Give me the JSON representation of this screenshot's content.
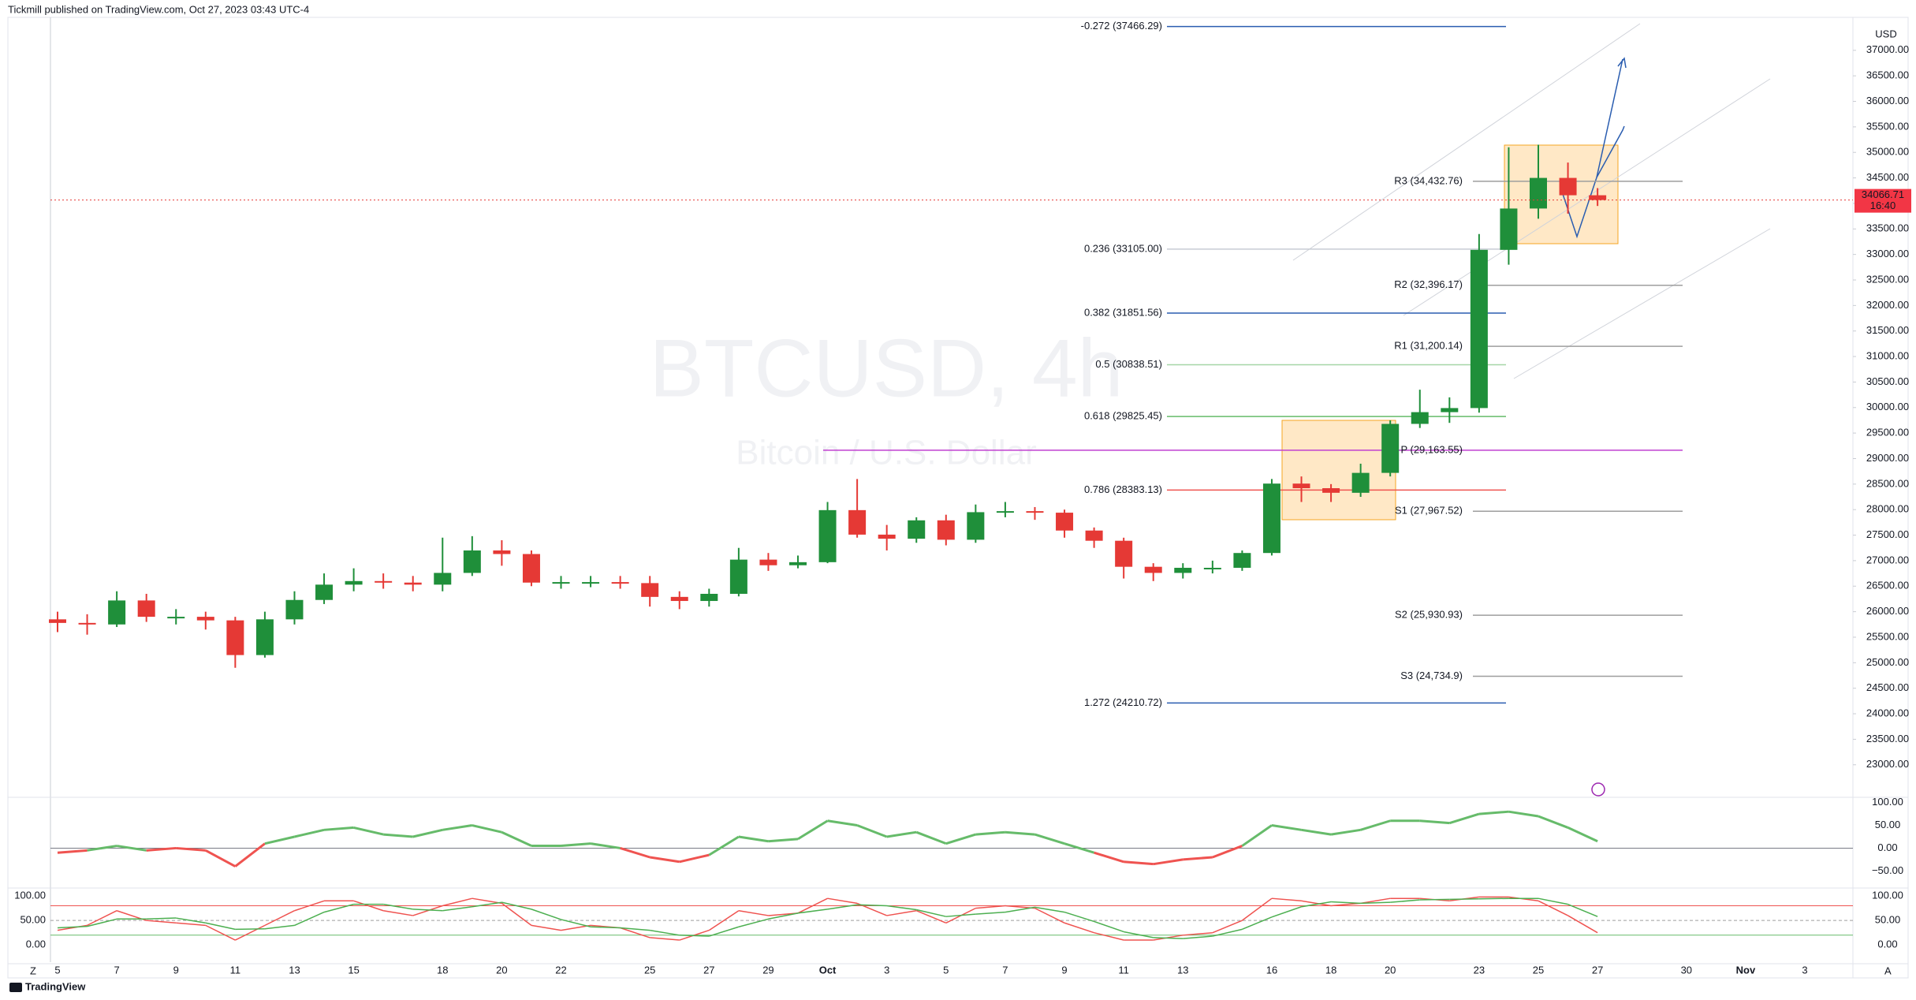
{
  "header": "Tickmill published on TradingView.com, Oct 27, 2023 03:43 UTC-4",
  "footer": "TradingView",
  "chart_data": {
    "type": "candlestick",
    "watermark": {
      "title": "BTCUSD, 4h",
      "subtitle": "Bitcoin / U.S. Dollar"
    },
    "currency": "USD",
    "x_labels": [
      "5",
      "7",
      "9",
      "11",
      "13",
      "15",
      "18",
      "20",
      "22",
      "25",
      "27",
      "29",
      "Oct",
      "3",
      "5",
      "7",
      "9",
      "11",
      "13",
      "16",
      "18",
      "20",
      "23",
      "25",
      "27",
      "30",
      "Nov",
      "3"
    ],
    "corner_labels": [
      "Z",
      "A"
    ],
    "colors": {
      "up": "#1f8f3a",
      "down": "#e53935"
    },
    "open": [
      25850,
      25780,
      25750,
      26220,
      25900,
      25900,
      25830,
      25150,
      25850,
      26230,
      26530,
      26600,
      26570,
      26530,
      26760,
      27200,
      27130,
      26570,
      26580,
      26580,
      26560,
      26290,
      26210,
      26350,
      27020,
      26910,
      26970,
      27990,
      27510,
      27430,
      27790,
      27410,
      27950,
      27970,
      27940,
      27590,
      27390,
      26880,
      26760,
      26860,
      26860,
      27150,
      28510,
      28420,
      28330,
      28720,
      29680,
      29910,
      29990,
      33090,
      33900,
      34500,
      34160
    ],
    "high": [
      26000,
      25950,
      26400,
      26350,
      26050,
      26000,
      25900,
      26000,
      26400,
      26750,
      26850,
      26750,
      26700,
      27450,
      27480,
      27400,
      27200,
      26700,
      26700,
      26700,
      26700,
      26400,
      26450,
      27250,
      27150,
      27100,
      28150,
      28600,
      27700,
      27850,
      27900,
      28100,
      28150,
      28050,
      28000,
      27650,
      27450,
      26950,
      26950,
      27000,
      27200,
      28600,
      28650,
      28500,
      28900,
      29750,
      30350,
      30200,
      33400,
      35100,
      35150,
      34800,
      34300
    ],
    "low": [
      25600,
      25550,
      25700,
      25800,
      25750,
      25650,
      24900,
      25100,
      25750,
      26150,
      26400,
      26450,
      26400,
      26400,
      26700,
      26900,
      26500,
      26450,
      26480,
      26450,
      26100,
      26050,
      26100,
      26300,
      26800,
      26850,
      26950,
      27450,
      27200,
      27350,
      27300,
      27350,
      27850,
      27800,
      27450,
      27250,
      26650,
      26600,
      26650,
      26750,
      26800,
      27100,
      28150,
      28150,
      28250,
      28650,
      29600,
      29700,
      29900,
      32800,
      33700,
      33800,
      33950
    ],
    "close": [
      25780,
      25750,
      26220,
      25900,
      25900,
      25830,
      25150,
      25850,
      26230,
      26530,
      26600,
      26570,
      26530,
      26760,
      27200,
      27130,
      26570,
      26580,
      26580,
      26560,
      26290,
      26210,
      26350,
      27020,
      26910,
      26970,
      27990,
      27510,
      27430,
      27790,
      27410,
      27950,
      27970,
      27940,
      27590,
      27390,
      26880,
      26760,
      26860,
      26860,
      27150,
      28510,
      28420,
      28330,
      28720,
      29680,
      29910,
      29990,
      33090,
      33900,
      34500,
      34160,
      34066.71
    ],
    "last": {
      "value": 34066.71,
      "countdown": "16:40"
    },
    "ylim": [
      22378,
      37646
    ],
    "yticks": [
      {
        "value": 23000,
        "label": "23000.00"
      },
      {
        "value": 23500,
        "label": "23500.00"
      },
      {
        "value": 24000,
        "label": "24000.00"
      },
      {
        "value": 24500,
        "label": "24500.00"
      },
      {
        "value": 25000,
        "label": "25000.00"
      },
      {
        "value": 25500,
        "label": "25500.00"
      },
      {
        "value": 26000,
        "label": "26000.00"
      },
      {
        "value": 26500,
        "label": "26500.00"
      },
      {
        "value": 27000,
        "label": "27000.00"
      },
      {
        "value": 27500,
        "label": "27500.00"
      },
      {
        "value": 28000,
        "label": "28000.00"
      },
      {
        "value": 28500,
        "label": "28500.00"
      },
      {
        "value": 29000,
        "label": "29000.00"
      },
      {
        "value": 29500,
        "label": "29500.00"
      },
      {
        "value": 30000,
        "label": "30000.00"
      },
      {
        "value": 30500,
        "label": "30500.00"
      },
      {
        "value": 31000,
        "label": "31000.00"
      },
      {
        "value": 31500,
        "label": "31500.00"
      },
      {
        "value": 32000,
        "label": "32000.00"
      },
      {
        "value": 32500,
        "label": "32500.00"
      },
      {
        "value": 33000,
        "label": "33000.00"
      },
      {
        "value": 33500,
        "label": "33500.00"
      },
      {
        "value": 34000,
        "label": "34000.00"
      },
      {
        "value": 34500,
        "label": "34500.00"
      },
      {
        "value": 35000,
        "label": "35000.00"
      },
      {
        "value": 35500,
        "label": "35500.00"
      },
      {
        "value": 36000,
        "label": "36000.00"
      },
      {
        "value": 36500,
        "label": "36500.00"
      },
      {
        "value": 37000,
        "label": "37000.00"
      }
    ],
    "fibs": [
      {
        "label": "-0.272 (37466.29)",
        "value": 37466.29,
        "color": "#2a5db0"
      },
      {
        "label": "0.236 (33105.00)",
        "value": 33105.0,
        "color": "#c8ccd4"
      },
      {
        "label": "0.382 (31851.56)",
        "value": 31851.56,
        "color": "#2a5db0"
      },
      {
        "label": "0.5 (30838.51)",
        "value": 30838.51,
        "color": "#a5d6a7"
      },
      {
        "label": "0.618 (29825.45)",
        "value": 29825.45,
        "color": "#66bb6a"
      },
      {
        "label": "0.786 (28383.13)",
        "value": 28383.13,
        "color": "#ef5350"
      },
      {
        "label": "1.272 (24210.72)",
        "value": 24210.72,
        "color": "#2a5db0"
      }
    ],
    "pivots": [
      {
        "label": "R3 (34,432.76)",
        "value": 34432.76,
        "color": "#9e9e9e"
      },
      {
        "label": "R2 (32,396.17)",
        "value": 32396.17,
        "color": "#9e9e9e"
      },
      {
        "label": "R1 (31,200.14)",
        "value": 31200.14,
        "color": "#9e9e9e"
      },
      {
        "label": "P (29,163.55)",
        "value": 29163.55,
        "color": "#c040d0"
      },
      {
        "label": "S1 (27,967.52)",
        "value": 27967.52,
        "color": "#9e9e9e"
      },
      {
        "label": "S2 (25,930.93)",
        "value": 25930.93,
        "color": "#9e9e9e"
      },
      {
        "label": "S3 (24,734.9)",
        "value": 24734.9,
        "color": "#9e9e9e"
      }
    ],
    "oscillators": [
      {
        "ylim": [
          -84,
          108
        ],
        "yticks": [
          {
            "value": 100,
            "label": "100.00"
          },
          {
            "value": 50,
            "label": "50.00"
          },
          {
            "value": 0,
            "label": "0.00"
          },
          {
            "value": -50,
            "label": "−50.00"
          }
        ],
        "series": [
          {
            "color": "#66bb6a",
            "down_color": "#ef5350",
            "values": [
              -10,
              -5,
              5,
              -5,
              0,
              -5,
              -40,
              10,
              25,
              40,
              45,
              30,
              25,
              40,
              50,
              35,
              5,
              5,
              10,
              0,
              -20,
              -30,
              -15,
              25,
              15,
              20,
              60,
              50,
              25,
              35,
              10,
              30,
              35,
              30,
              10,
              -10,
              -30,
              -35,
              -25,
              -20,
              5,
              50,
              40,
              30,
              40,
              60,
              60,
              55,
              75,
              80,
              70,
              45,
              15
            ]
          }
        ]
      },
      {
        "ylim": [
          -35,
          113
        ],
        "yticks": [
          {
            "value": 100,
            "label": "100.00"
          },
          {
            "value": 50,
            "label": "50.00"
          },
          {
            "value": 0,
            "label": "0.00"
          }
        ],
        "levels": [
          {
            "value": 80,
            "color": "#ef5350"
          },
          {
            "value": 50,
            "color": "#9e9e9e"
          },
          {
            "value": 20,
            "color": "#66bb6a"
          }
        ],
        "series": [
          {
            "color": "#ef5350",
            "values": [
              30,
              40,
              70,
              50,
              45,
              40,
              10,
              40,
              70,
              90,
              90,
              70,
              60,
              80,
              95,
              85,
              40,
              30,
              40,
              35,
              15,
              10,
              30,
              70,
              60,
              65,
              95,
              85,
              60,
              70,
              45,
              75,
              80,
              75,
              45,
              25,
              10,
              10,
              20,
              25,
              50,
              95,
              90,
              80,
              85,
              95,
              95,
              90,
              98,
              98,
              90,
              60,
              25
            ]
          },
          {
            "color": "#4caf50",
            "values": [
              35,
              38,
              53,
              53,
              55,
              45,
              32,
              33,
              40,
              67,
              83,
              83,
              73,
              70,
              78,
              87,
              73,
              52,
              37,
              35,
              30,
              20,
              18,
              37,
              53,
              65,
              73,
              82,
              80,
              72,
              58,
              63,
              67,
              77,
              67,
              48,
              27,
              15,
              13,
              18,
              32,
              57,
              78,
              88,
              85,
              87,
              92,
              93,
              94,
              95,
              95,
              83,
              58
            ]
          }
        ]
      }
    ]
  }
}
